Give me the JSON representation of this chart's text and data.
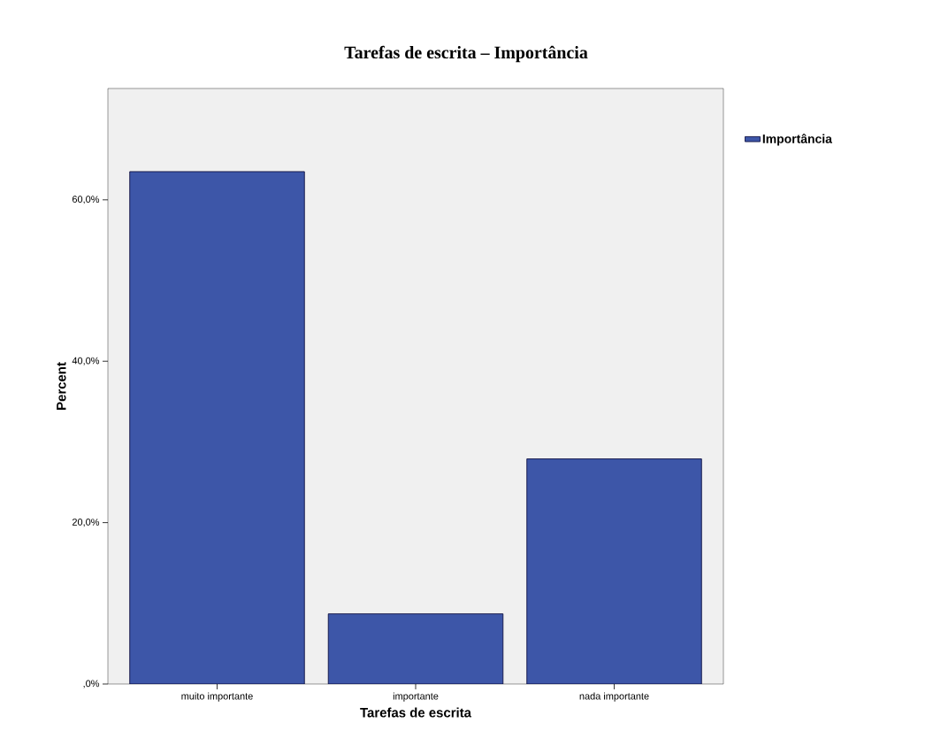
{
  "chart_data": {
    "type": "bar",
    "title": "Tarefas de escrita – Importância",
    "xlabel": "Tarefas de escrita",
    "ylabel": "Percent",
    "categories": [
      "muito importante",
      "importante",
      "nada importante"
    ],
    "series": [
      {
        "name": "Importância",
        "color": "#3d56a8",
        "values": [
          63.5,
          8.7,
          27.9
        ]
      }
    ],
    "ylim": [
      0,
      73.8
    ],
    "yticks": [
      {
        "value": 0,
        "label": ",0%"
      },
      {
        "value": 20,
        "label": "20,0%"
      },
      {
        "value": 40,
        "label": "40,0%"
      },
      {
        "value": 60,
        "label": "60,0%"
      }
    ],
    "grid": false,
    "legend": "right"
  }
}
